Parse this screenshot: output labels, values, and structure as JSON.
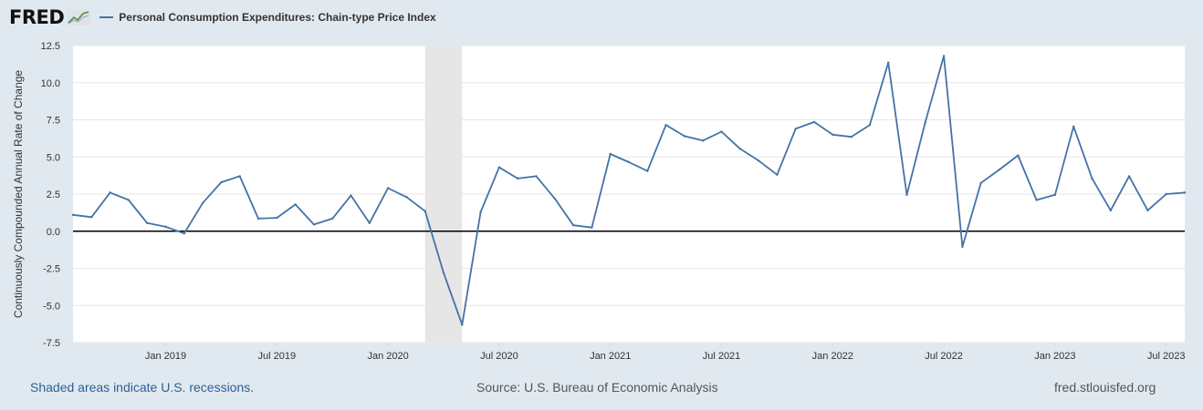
{
  "header": {
    "logo_text": "FRED",
    "logo_icon": "chart-trend-icon",
    "legend_label": "Personal Consumption Expenditures: Chain-type Price Index",
    "legend_color": "#4572a7"
  },
  "footer": {
    "recession_note": "Shaded areas indicate U.S. recessions.",
    "source": "Source: U.S. Bureau of Economic Analysis",
    "site": "fred.stlouisfed.org"
  },
  "chart_data": {
    "type": "line",
    "ylabel": "Continuously Compounded Annual Rate of Change",
    "ylim": [
      -7.5,
      12.5
    ],
    "yticks": [
      "12.5",
      "10.0",
      "7.5",
      "5.0",
      "2.5",
      "0.0",
      "-2.5",
      "-5.0",
      "-7.5"
    ],
    "xlim": [
      "2018-08",
      "2023-08"
    ],
    "xticks": [
      {
        "label": "Jan 2019",
        "date": "2019-01"
      },
      {
        "label": "Jul 2019",
        "date": "2019-07"
      },
      {
        "label": "Jan 2020",
        "date": "2020-01"
      },
      {
        "label": "Jul 2020",
        "date": "2020-07"
      },
      {
        "label": "Jan 2021",
        "date": "2021-01"
      },
      {
        "label": "Jul 2021",
        "date": "2021-07"
      },
      {
        "label": "Jan 2022",
        "date": "2022-01"
      },
      {
        "label": "Jul 2022",
        "date": "2022-07"
      },
      {
        "label": "Jan 2023",
        "date": "2023-01"
      },
      {
        "label": "Jul 2023",
        "date": "2023-07"
      }
    ],
    "recession": {
      "start": "2020-03",
      "end": "2020-05"
    },
    "grid": true,
    "series": [
      {
        "name": "Personal Consumption Expenditures: Chain-type Price Index",
        "color": "#4572a7",
        "x": [
          "2018-08",
          "2018-09",
          "2018-10",
          "2018-11",
          "2018-12",
          "2019-01",
          "2019-02",
          "2019-03",
          "2019-04",
          "2019-05",
          "2019-06",
          "2019-07",
          "2019-08",
          "2019-09",
          "2019-10",
          "2019-11",
          "2019-12",
          "2020-01",
          "2020-02",
          "2020-03",
          "2020-04",
          "2020-05",
          "2020-06",
          "2020-07",
          "2020-08",
          "2020-09",
          "2020-10",
          "2020-11",
          "2020-12",
          "2021-01",
          "2021-02",
          "2021-03",
          "2021-04",
          "2021-05",
          "2021-06",
          "2021-07",
          "2021-08",
          "2021-09",
          "2021-10",
          "2021-11",
          "2021-12",
          "2022-01",
          "2022-02",
          "2022-03",
          "2022-04",
          "2022-05",
          "2022-06",
          "2022-07",
          "2022-08",
          "2022-09",
          "2022-10",
          "2022-11",
          "2022-12",
          "2023-01",
          "2023-02",
          "2023-03",
          "2023-04",
          "2023-05",
          "2023-06",
          "2023-07",
          "2023-08"
        ],
        "values": [
          1.1,
          0.95,
          2.6,
          2.1,
          0.55,
          0.3,
          -0.15,
          1.9,
          3.3,
          3.7,
          0.85,
          0.9,
          1.8,
          0.45,
          0.85,
          2.4,
          0.55,
          2.9,
          2.3,
          1.35,
          -2.8,
          -6.3,
          1.3,
          4.3,
          3.55,
          3.7,
          2.2,
          0.4,
          0.25,
          5.2,
          4.65,
          4.05,
          7.15,
          6.4,
          6.1,
          6.7,
          5.55,
          4.75,
          3.8,
          6.9,
          7.35,
          6.5,
          6.35,
          7.15,
          11.35,
          2.45,
          7.35,
          11.8,
          -1.05,
          3.25,
          4.15,
          5.1,
          2.1,
          2.45,
          7.05,
          3.55,
          1.4,
          3.7,
          1.4,
          2.5,
          2.6
        ]
      }
    ]
  }
}
